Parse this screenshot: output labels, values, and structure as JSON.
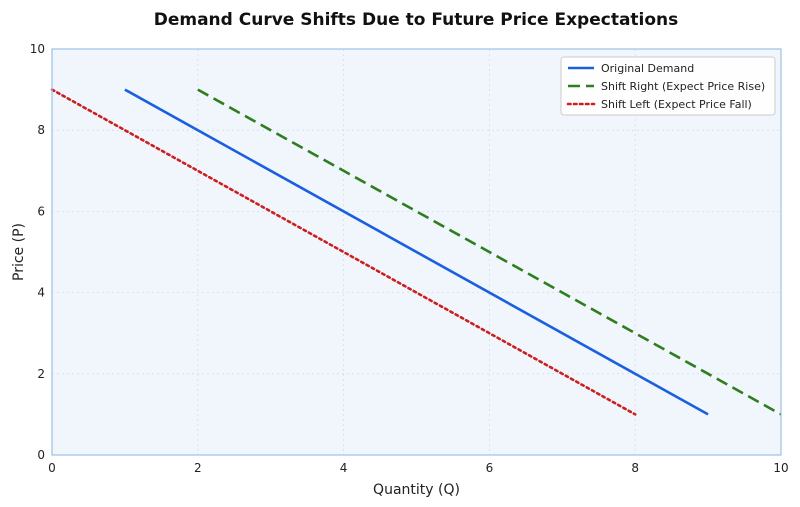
{
  "chart_data": {
    "type": "line",
    "title": "Demand Curve Shifts Due to Future Price Expectations",
    "xlabel": "Quantity (Q)",
    "ylabel": "Price (P)",
    "xlim": [
      0,
      10
    ],
    "ylim": [
      0,
      10
    ],
    "xticks": [
      0,
      2,
      4,
      6,
      8,
      10
    ],
    "yticks": [
      0,
      2,
      4,
      6,
      8,
      10
    ],
    "grid": true,
    "legend_position": "top-right",
    "series": [
      {
        "name": "Original Demand",
        "style": "solid",
        "color": "#1a5fe0",
        "x": [
          1,
          9
        ],
        "y": [
          9,
          1
        ]
      },
      {
        "name": "Shift Right (Expect Price Rise)",
        "style": "dashed",
        "color": "#2e7d1f",
        "x": [
          2,
          10
        ],
        "y": [
          9,
          1
        ]
      },
      {
        "name": "Shift Left (Expect Price Fall)",
        "style": "dotted",
        "color": "#cc1f1f",
        "x": [
          0,
          8
        ],
        "y": [
          9,
          1
        ]
      }
    ]
  },
  "colors": {
    "plot_background": "#f1f6fd",
    "plot_border": "#9cc0e6",
    "grid": "#d4dde8"
  }
}
